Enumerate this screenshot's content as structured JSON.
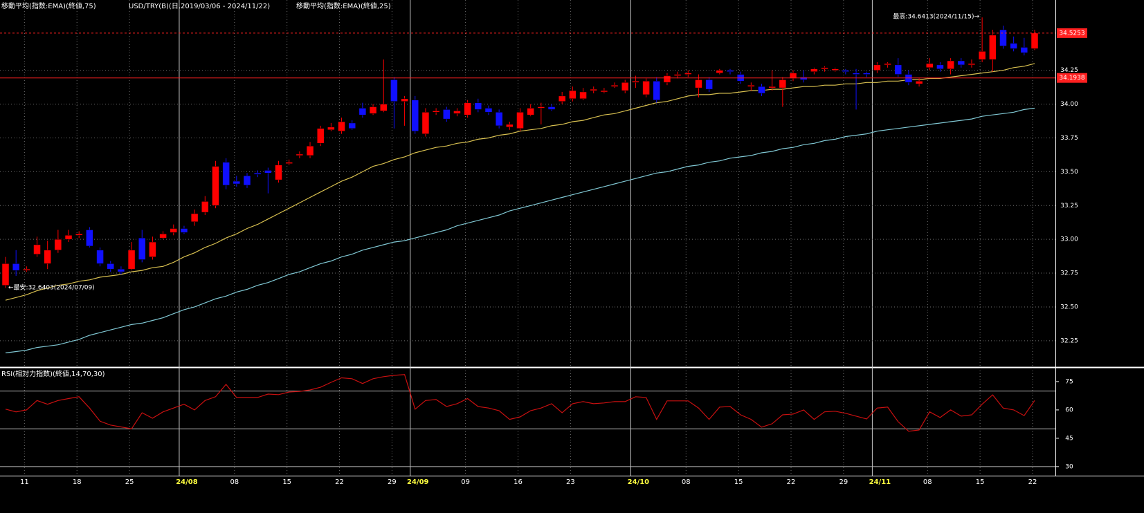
{
  "chart_data": [
    {
      "type": "candlestick",
      "title": "USD/TRY(B)(日,2019/03/06 - 2024/11/22)",
      "categories": [
        null,
        null,
        "11",
        null,
        null,
        null,
        null,
        "18",
        null,
        null,
        null,
        null,
        "25",
        null,
        null,
        null,
        null,
        "24/08",
        null,
        null,
        null,
        null,
        "08",
        null,
        null,
        null,
        null,
        "15",
        null,
        null,
        null,
        null,
        "22",
        null,
        null,
        null,
        null,
        "29",
        null,
        "24/09",
        null,
        null,
        null,
        null,
        "09",
        null,
        null,
        null,
        null,
        "16",
        null,
        null,
        null,
        null,
        "23",
        null,
        null,
        null,
        null,
        null,
        "24/10",
        null,
        null,
        null,
        null,
        "08",
        null,
        null,
        null,
        null,
        "15",
        null,
        null,
        null,
        null,
        "22",
        null,
        null,
        null,
        null,
        "29",
        null,
        null,
        "24/11",
        null,
        null,
        null,
        null,
        "08",
        null,
        null,
        null,
        null,
        "15",
        null,
        null,
        null,
        null,
        "22"
      ],
      "open": [
        32.66,
        32.82,
        32.77,
        32.89,
        32.82,
        32.92,
        33.0,
        33.03,
        33.07,
        32.92,
        32.82,
        32.78,
        32.78,
        33.01,
        32.87,
        33.01,
        33.05,
        33.08,
        33.13,
        33.2,
        33.25,
        33.57,
        33.43,
        33.47,
        33.49,
        33.51,
        33.44,
        33.56,
        33.62,
        33.62,
        33.71,
        33.81,
        33.8,
        33.86,
        33.97,
        33.93,
        33.95,
        34.18,
        34.02,
        34.03,
        33.78,
        33.94,
        33.96,
        33.93,
        33.92,
        34.01,
        33.97,
        33.94,
        33.83,
        33.82,
        33.92,
        33.97,
        33.98,
        34.02,
        34.04,
        34.04,
        34.1,
        34.09,
        34.13,
        34.1,
        34.16,
        34.07,
        34.17,
        34.16,
        34.21,
        34.22,
        34.12,
        34.18,
        34.23,
        34.25,
        34.22,
        34.13,
        34.13,
        34.12,
        34.12,
        34.19,
        34.2,
        34.24,
        34.26,
        34.25,
        34.25,
        34.23,
        34.23,
        34.25,
        34.29,
        34.29,
        34.22,
        34.15,
        34.27,
        34.29,
        34.26,
        34.32,
        34.29,
        34.33,
        34.33,
        34.55,
        34.45,
        34.42,
        34.41
      ],
      "high": [
        32.87,
        32.92,
        32.8,
        33.02,
        32.99,
        33.07,
        33.07,
        33.06,
        33.09,
        32.94,
        32.84,
        32.8,
        32.98,
        33.07,
        33.02,
        33.06,
        33.11,
        33.1,
        33.22,
        33.32,
        33.58,
        33.6,
        33.47,
        33.49,
        33.51,
        33.53,
        33.58,
        33.59,
        33.65,
        33.72,
        33.84,
        33.86,
        33.9,
        33.88,
        34.01,
        34.0,
        34.33,
        34.2,
        34.06,
        34.06,
        33.97,
        33.97,
        33.98,
        33.97,
        34.03,
        34.04,
        33.99,
        33.96,
        33.87,
        33.97,
        34.0,
        34.01,
        34.0,
        34.09,
        34.13,
        34.12,
        34.13,
        34.12,
        34.16,
        34.18,
        34.21,
        34.19,
        34.2,
        34.23,
        34.24,
        34.25,
        34.22,
        34.2,
        34.26,
        34.26,
        34.24,
        34.16,
        34.15,
        34.25,
        34.2,
        34.25,
        34.25,
        34.27,
        34.28,
        34.27,
        34.26,
        34.26,
        34.24,
        34.31,
        34.31,
        34.34,
        34.25,
        34.19,
        34.34,
        34.31,
        34.34,
        34.34,
        34.33,
        34.6413,
        34.55,
        34.58,
        34.5,
        34.49,
        34.55
      ],
      "low": [
        32.6403,
        32.73,
        32.76,
        32.87,
        32.78,
        32.9,
        32.98,
        33.01,
        32.94,
        32.8,
        32.76,
        32.74,
        32.77,
        32.83,
        32.85,
        33.0,
        33.03,
        33.04,
        33.1,
        33.18,
        33.23,
        33.37,
        33.39,
        33.38,
        33.46,
        33.34,
        33.42,
        33.55,
        33.6,
        33.6,
        33.69,
        33.8,
        33.78,
        33.81,
        33.9,
        33.92,
        33.94,
        33.82,
        33.84,
        33.78,
        33.76,
        33.92,
        33.87,
        33.91,
        33.9,
        33.94,
        33.92,
        33.82,
        33.81,
        33.8,
        33.91,
        33.85,
        33.95,
        34.0,
        34.02,
        34.03,
        34.08,
        34.08,
        34.12,
        34.08,
        34.12,
        34.05,
        34.01,
        34.14,
        34.19,
        34.2,
        34.05,
        34.09,
        34.22,
        34.22,
        34.15,
        34.1,
        34.06,
        34.1,
        33.98,
        34.17,
        34.16,
        34.22,
        34.24,
        34.24,
        34.22,
        33.96,
        34.2,
        34.23,
        34.27,
        34.2,
        34.14,
        34.13,
        34.25,
        34.24,
        34.22,
        34.27,
        34.27,
        34.31,
        34.24,
        34.41,
        34.39,
        34.36,
        34.4
      ],
      "close": [
        32.82,
        32.77,
        32.78,
        32.96,
        32.92,
        33.0,
        33.03,
        33.04,
        32.95,
        32.82,
        32.78,
        32.76,
        32.92,
        32.85,
        32.98,
        33.04,
        33.08,
        33.05,
        33.19,
        33.28,
        33.54,
        33.4,
        33.41,
        33.4,
        33.48,
        33.49,
        33.55,
        33.57,
        33.63,
        33.69,
        33.82,
        33.83,
        33.87,
        33.82,
        33.92,
        33.98,
        34.0,
        34.02,
        34.04,
        33.8,
        33.94,
        33.95,
        33.89,
        33.95,
        34.01,
        33.96,
        33.94,
        33.84,
        33.85,
        33.94,
        33.97,
        33.98,
        33.96,
        34.06,
        34.1,
        34.09,
        34.11,
        34.1,
        34.14,
        34.16,
        34.17,
        34.17,
        34.03,
        34.21,
        34.22,
        34.23,
        34.18,
        34.11,
        34.25,
        34.24,
        34.17,
        34.14,
        34.08,
        34.13,
        34.18,
        34.23,
        34.18,
        34.26,
        34.27,
        34.26,
        34.24,
        34.22,
        34.22,
        34.29,
        34.3,
        34.22,
        34.16,
        34.17,
        34.3,
        34.26,
        34.32,
        34.29,
        34.3,
        34.39,
        34.51,
        34.43,
        34.41,
        34.38,
        34.5253
      ],
      "up_color": "#ff0000",
      "down_color": "#1010ff",
      "series": [
        {
          "name": "移動平均(指数:EMA)(終値,75)",
          "color": "#80c8d4",
          "values": [
            32.16,
            32.17,
            32.18,
            32.2,
            32.21,
            32.22,
            32.24,
            32.26,
            32.29,
            32.31,
            32.33,
            32.35,
            32.37,
            32.38,
            32.4,
            32.42,
            32.45,
            32.48,
            32.5,
            32.53,
            32.56,
            32.58,
            32.61,
            32.63,
            32.66,
            32.68,
            32.71,
            32.74,
            32.76,
            32.79,
            32.82,
            32.84,
            32.87,
            32.89,
            32.92,
            32.94,
            32.96,
            32.98,
            32.99,
            33.01,
            33.03,
            33.05,
            33.07,
            33.1,
            33.12,
            33.14,
            33.16,
            33.18,
            33.21,
            33.23,
            33.25,
            33.27,
            33.29,
            33.31,
            33.33,
            33.35,
            33.37,
            33.39,
            33.41,
            33.43,
            33.45,
            33.47,
            33.49,
            33.5,
            33.52,
            33.54,
            33.55,
            33.57,
            33.58,
            33.6,
            33.61,
            33.62,
            33.64,
            33.65,
            33.67,
            33.68,
            33.7,
            33.71,
            33.73,
            33.74,
            33.76,
            33.77,
            33.78,
            33.8,
            33.81,
            33.82,
            33.83,
            33.84,
            33.85,
            33.86,
            33.87,
            33.88,
            33.89,
            33.91,
            33.92,
            33.93,
            33.94,
            33.96,
            33.97
          ]
        },
        {
          "name": "移動平均(指数:EMA)(終値,25)",
          "color": "#d8c050",
          "values": [
            32.55,
            32.57,
            32.59,
            32.62,
            32.64,
            32.66,
            32.67,
            32.69,
            32.7,
            32.72,
            32.73,
            32.74,
            32.76,
            32.77,
            32.79,
            32.8,
            32.83,
            32.87,
            32.9,
            32.94,
            32.97,
            33.01,
            33.04,
            33.08,
            33.11,
            33.15,
            33.19,
            33.23,
            33.27,
            33.31,
            33.35,
            33.39,
            33.43,
            33.46,
            33.5,
            33.54,
            33.56,
            33.59,
            33.61,
            33.64,
            33.66,
            33.68,
            33.69,
            33.71,
            33.72,
            33.74,
            33.75,
            33.77,
            33.78,
            33.8,
            33.81,
            33.82,
            33.84,
            33.85,
            33.87,
            33.88,
            33.9,
            33.92,
            33.93,
            33.95,
            33.97,
            33.99,
            34.01,
            34.02,
            34.04,
            34.06,
            34.07,
            34.07,
            34.08,
            34.08,
            34.09,
            34.1,
            34.1,
            34.11,
            34.11,
            34.12,
            34.13,
            34.13,
            34.14,
            34.14,
            34.15,
            34.15,
            34.16,
            34.16,
            34.17,
            34.17,
            34.18,
            34.18,
            34.19,
            34.19,
            34.2,
            34.21,
            34.22,
            34.23,
            34.24,
            34.25,
            34.27,
            34.28,
            34.3
          ]
        }
      ],
      "ylim": [
        32.06,
        34.77
      ],
      "yticks": [
        34.25,
        {
          "value": 34,
          "label": "34.00"
        },
        33.75,
        {
          "value": 33.5,
          "label": "33.50"
        },
        33.25,
        {
          "value": 33,
          "label": "33.00"
        },
        32.75,
        {
          "value": 32.5,
          "label": "32.50"
        },
        32.25
      ],
      "grid": true,
      "price_lines": [
        {
          "value": 34.5253,
          "color": "#ff2020",
          "dashed": true
        },
        {
          "value": 34.1938,
          "color": "#ff2020",
          "dashed": false
        }
      ],
      "annotations": [
        "最高:34.6413(2024/11/15)→",
        "←最安:32.6403(2024/07/09)"
      ]
    },
    {
      "type": "line",
      "title": "RSI(相対力指数)(終値,14,70,30)",
      "color": "#c81010",
      "values": [
        60.4,
        59,
        60,
        65,
        63,
        65,
        66,
        67,
        61,
        54,
        52,
        51,
        50,
        58.5,
        55.6,
        59,
        61,
        63,
        60,
        65,
        67,
        73.5,
        66.6,
        66.6,
        66.6,
        68.4,
        68.1,
        69.5,
        69.8,
        70.6,
        72,
        74.6,
        77,
        76.5,
        74,
        76.5,
        77.6,
        78.3,
        78.7,
        60.4,
        65,
        65.5,
        61.8,
        63.3,
        66,
        61.8,
        61,
        59.6,
        55,
        56.3,
        59.6,
        61,
        63.3,
        58.5,
        63.3,
        64.4,
        63.3,
        63.7,
        64.4,
        64.4,
        67,
        66.6,
        55,
        64.8,
        64.8,
        64.8,
        61,
        55,
        61.5,
        61.8,
        57.4,
        55,
        50.9,
        52.7,
        57.4,
        57.8,
        60,
        55,
        59,
        59.3,
        58.2,
        56.7,
        55.2,
        61,
        61.5,
        53.8,
        48.7,
        49.4,
        59,
        56,
        60,
        56.7,
        57.4,
        63,
        68,
        61,
        60,
        57,
        65
      ],
      "ylim": [
        25.2,
        81.2
      ],
      "yticks": [
        30,
        45,
        60,
        75
      ],
      "levels": [
        70,
        50,
        30
      ],
      "level_color": "#b8b8b8"
    }
  ]
}
